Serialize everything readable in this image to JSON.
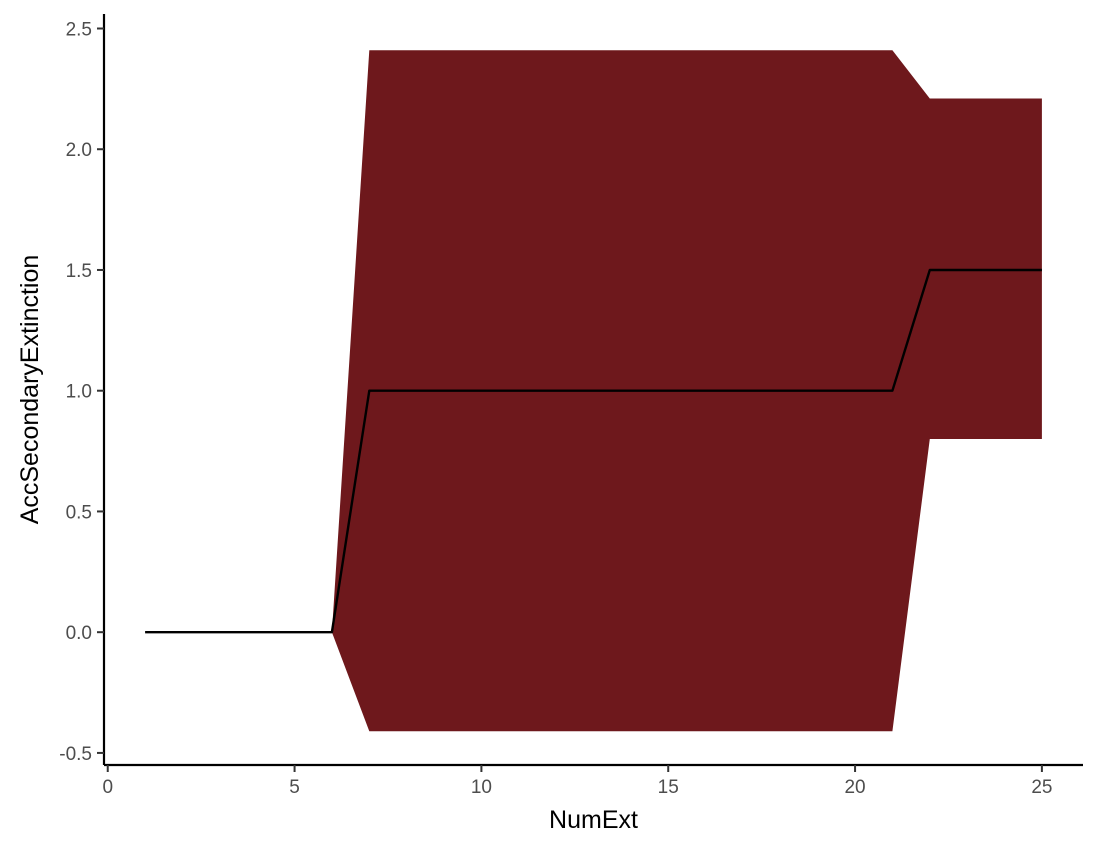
{
  "chart_data": {
    "type": "area",
    "title": "",
    "xlabel": "NumExt",
    "ylabel": "AccSecondaryExtinction",
    "xlim": [
      -0.1,
      26.1
    ],
    "ylim": [
      -0.55,
      2.56
    ],
    "x_ticks": [
      0,
      5,
      10,
      15,
      20,
      25
    ],
    "x_tick_labels": [
      "0",
      "5",
      "10",
      "15",
      "20",
      "25"
    ],
    "y_ticks": [
      -0.5,
      0.0,
      0.5,
      1.0,
      1.5,
      2.0,
      2.5
    ],
    "y_tick_labels": [
      "-0.5",
      "0.0",
      "0.5",
      "1.0",
      "1.5",
      "2.0",
      "2.5"
    ],
    "grid": false,
    "legend": "none",
    "ribbon_color": "#6e181c",
    "line_color": "#000000",
    "series": [
      {
        "x": [
          1,
          6,
          7,
          21,
          22,
          25
        ],
        "y": [
          0,
          0,
          1.0,
          1.0,
          1.5,
          1.5
        ],
        "lower": [
          0,
          0,
          -0.41,
          -0.41,
          0.8,
          0.8
        ],
        "upper": [
          0,
          0,
          2.41,
          2.41,
          2.21,
          2.21
        ]
      }
    ]
  }
}
